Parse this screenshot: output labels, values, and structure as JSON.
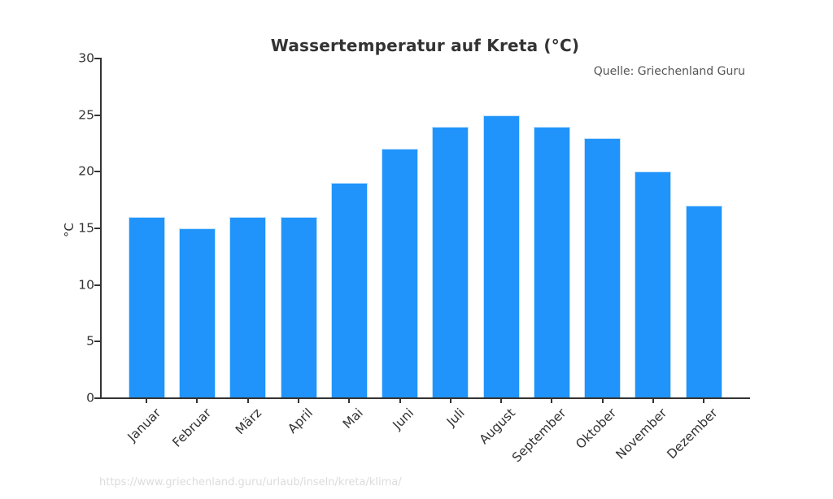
{
  "chart_data": {
    "type": "bar",
    "title": "Wassertemperatur auf Kreta (°C)",
    "source": "Quelle: Griechenland Guru",
    "footer_url": "https://www.griechenland.guru/urlaub/inseln/kreta/klima/",
    "categories": [
      "Januar",
      "Februar",
      "März",
      "April",
      "Mai",
      "Juni",
      "Juli",
      "August",
      "September",
      "Oktober",
      "November",
      "Dezember"
    ],
    "values": [
      16,
      15,
      16,
      16,
      19,
      22,
      24,
      25,
      24,
      23,
      20,
      17
    ],
    "xlabel": "",
    "ylabel": "°C",
    "yticks": [
      0,
      5,
      10,
      15,
      20,
      25,
      30
    ],
    "ylim": [
      0,
      30
    ],
    "grid": false,
    "legend": null,
    "colors": {
      "bar_fill": "#2094FA",
      "bar_edge": "#BFE0FD",
      "axis": "#333333",
      "title_text": "#333333",
      "tick_text": "#333333",
      "source_text": "#555555",
      "url_text": "#DCDCDC"
    }
  }
}
